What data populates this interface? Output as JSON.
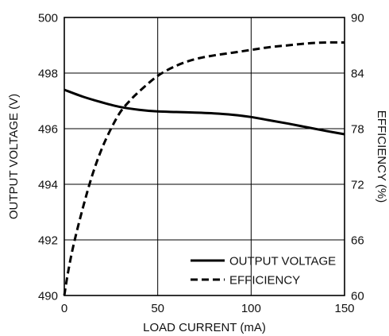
{
  "chart_data": {
    "type": "line",
    "xlabel": "LOAD CURRENT (mA)",
    "ylabel_left": "OUTPUT VOLTAGE (V)",
    "ylabel_right": "EFFICIENCY (%)",
    "xlim": [
      0,
      150
    ],
    "ylim_left": [
      490,
      500
    ],
    "ylim_right": [
      60,
      90
    ],
    "x_ticks": [
      "0",
      "50",
      "100",
      "150"
    ],
    "y_ticks_left": [
      "490",
      "492",
      "494",
      "496",
      "498",
      "500"
    ],
    "y_ticks_right": [
      "60",
      "66",
      "72",
      "78",
      "84",
      "90"
    ],
    "grid": true,
    "legend_position": "bottom-right",
    "series": [
      {
        "name": "OUTPUT VOLTAGE",
        "axis": "left",
        "style": "solid",
        "x": [
          0,
          10,
          20,
          30,
          40,
          50,
          60,
          70,
          80,
          90,
          100,
          110,
          120,
          130,
          140,
          150
        ],
        "y": [
          497.4,
          497.15,
          496.95,
          496.78,
          496.68,
          496.62,
          496.6,
          496.58,
          496.55,
          496.5,
          496.42,
          496.3,
          496.18,
          496.05,
          495.92,
          495.8
        ]
      },
      {
        "name": "EFFICIENCY",
        "axis": "right",
        "style": "dashed",
        "x": [
          0,
          2,
          5,
          10,
          15,
          20,
          25,
          30,
          35,
          40,
          50,
          60,
          70,
          80,
          90,
          100,
          110,
          120,
          130,
          140,
          150
        ],
        "y": [
          60,
          62.5,
          65.5,
          69.5,
          73,
          75.8,
          78,
          79.8,
          81,
          82,
          83.7,
          84.8,
          85.5,
          85.9,
          86.2,
          86.5,
          86.8,
          87,
          87.2,
          87.3,
          87.3
        ]
      }
    ]
  }
}
